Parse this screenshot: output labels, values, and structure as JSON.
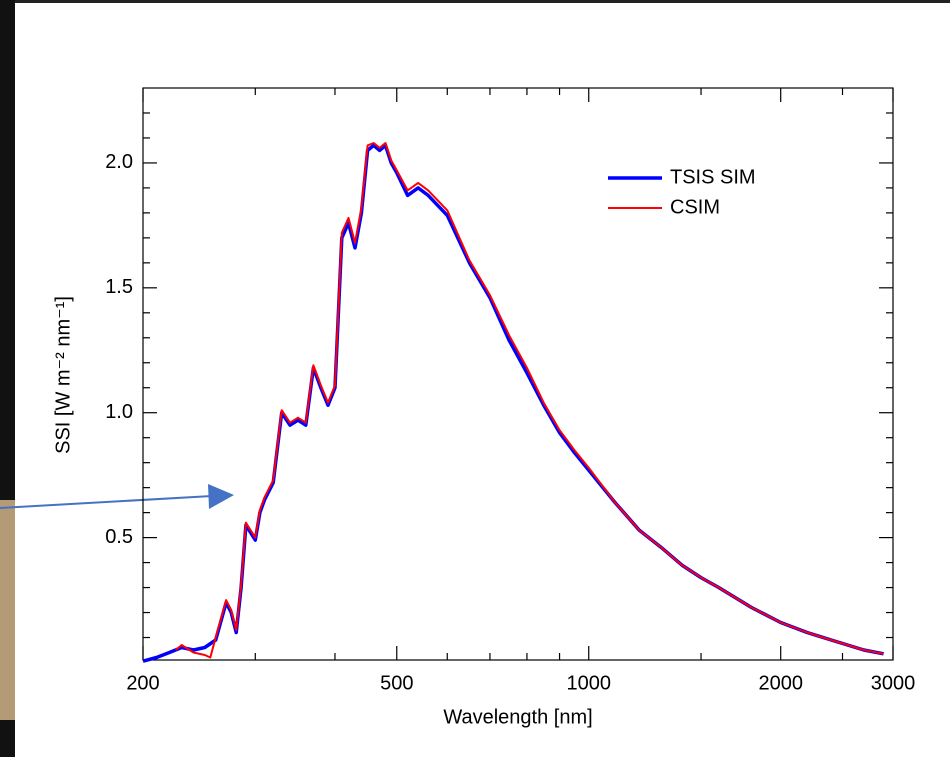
{
  "chart_data": {
    "type": "line",
    "xlabel": "Wavelength [nm]",
    "ylabel": "SSI [W m⁻² nm⁻¹]",
    "xscale": "log",
    "xlim": [
      200,
      3000
    ],
    "ylim": [
      0.01,
      2.3
    ],
    "xticks": [
      200,
      500,
      1000,
      2000,
      3000
    ],
    "xminorticks": [
      300,
      400,
      600,
      700,
      800,
      900,
      1500,
      2500
    ],
    "yticks": [
      0.5,
      {
        "value": 1,
        "label": "1.0"
      },
      1.5,
      {
        "value": 2,
        "label": "2.0"
      }
    ],
    "yminorticks": [
      0.1,
      0.2,
      0.3,
      0.4,
      0.6,
      0.7,
      0.8,
      0.9,
      1.1,
      1.2,
      1.3,
      1.4,
      1.6,
      1.7,
      1.8,
      1.9,
      2.1,
      2.2
    ],
    "legend": "upper right",
    "series": [
      {
        "name": "TSIS SIM",
        "color": "#0000ff",
        "width": 3.5,
        "x": [
          200,
          210,
          220,
          230,
          240,
          250,
          260,
          270,
          275,
          280,
          285,
          290,
          295,
          300,
          305,
          310,
          320,
          330,
          340,
          350,
          360,
          370,
          380,
          390,
          400,
          410,
          420,
          430,
          440,
          450,
          460,
          470,
          480,
          490,
          500,
          520,
          540,
          560,
          600,
          650,
          700,
          750,
          800,
          850,
          900,
          950,
          1000,
          1100,
          1200,
          1300,
          1400,
          1500,
          1600,
          1800,
          2000,
          2200,
          2400,
          2700,
          2900
        ],
        "values": [
          0.005,
          0.02,
          0.04,
          0.06,
          0.05,
          0.06,
          0.09,
          0.24,
          0.2,
          0.12,
          0.3,
          0.55,
          0.52,
          0.49,
          0.6,
          0.65,
          0.72,
          1.0,
          0.95,
          0.97,
          0.95,
          1.18,
          1.1,
          1.03,
          1.1,
          1.7,
          1.76,
          1.66,
          1.8,
          2.05,
          2.07,
          2.05,
          2.07,
          2.0,
          1.96,
          1.87,
          1.9,
          1.87,
          1.79,
          1.6,
          1.46,
          1.29,
          1.16,
          1.03,
          0.92,
          0.84,
          0.77,
          0.64,
          0.53,
          0.46,
          0.39,
          0.34,
          0.3,
          0.22,
          0.16,
          0.12,
          0.09,
          0.05,
          0.035
        ]
      },
      {
        "name": "CSIM",
        "color": "#ff0000",
        "width": 2,
        "x": [
          225,
          230,
          240,
          250,
          255,
          260,
          270,
          275,
          280,
          285,
          290,
          295,
          300,
          305,
          310,
          320,
          330,
          340,
          350,
          360,
          370,
          380,
          390,
          400,
          410,
          420,
          430,
          440,
          450,
          460,
          470,
          480,
          490,
          500,
          520,
          540,
          560,
          600,
          650,
          700,
          750,
          800,
          850,
          900,
          950,
          1000,
          1100,
          1200,
          1300,
          1400,
          1500,
          1600,
          1800,
          2000,
          2200,
          2400,
          2700,
          2900
        ],
        "values": [
          0.05,
          0.07,
          0.04,
          0.03,
          0.02,
          0.1,
          0.25,
          0.21,
          0.13,
          0.31,
          0.56,
          0.53,
          0.5,
          0.61,
          0.66,
          0.73,
          1.01,
          0.96,
          0.98,
          0.96,
          1.19,
          1.11,
          1.04,
          1.11,
          1.72,
          1.78,
          1.68,
          1.82,
          2.07,
          2.08,
          2.06,
          2.08,
          2.01,
          1.97,
          1.89,
          1.92,
          1.89,
          1.81,
          1.61,
          1.47,
          1.31,
          1.18,
          1.04,
          0.93,
          0.85,
          0.78,
          0.64,
          0.53,
          0.46,
          0.39,
          0.34,
          0.3,
          0.22,
          0.16,
          0.12,
          0.09,
          0.05,
          0.035
        ]
      }
    ]
  }
}
